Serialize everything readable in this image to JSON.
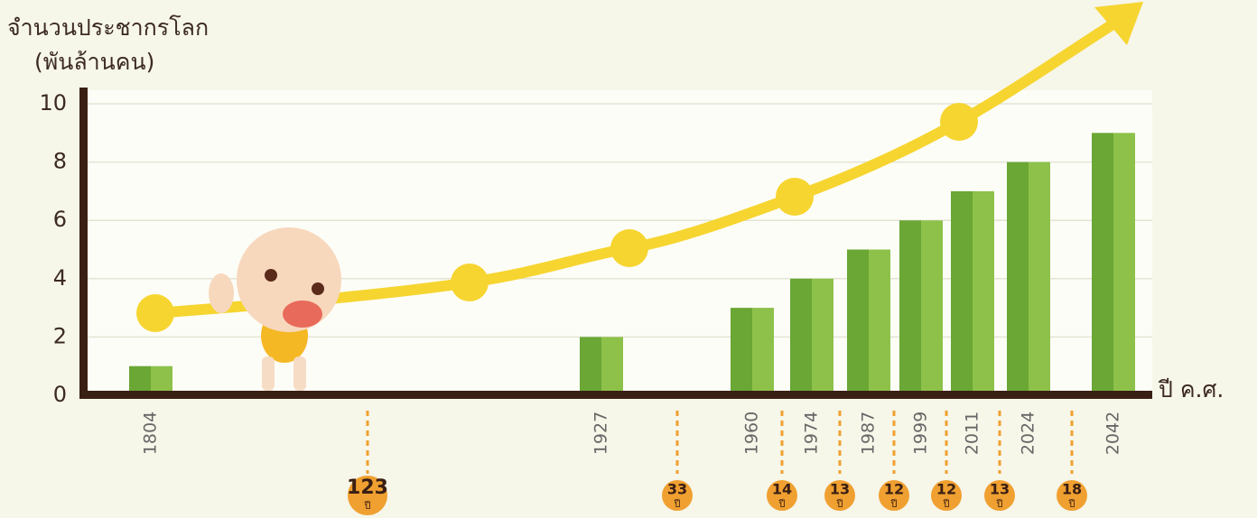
{
  "chart_data": {
    "type": "bar",
    "y_label": "จำนวนประชากรโลก",
    "y_label_unit": "(พันล้านคน)",
    "x_label": "ปี ค.ศ.",
    "categories": [
      "1804",
      "1927",
      "1960",
      "1974",
      "1987",
      "1999",
      "2011",
      "2024",
      "2042"
    ],
    "values": [
      1,
      2,
      3,
      4,
      5,
      6,
      7,
      8,
      9
    ],
    "color": "#8dc14a",
    "ylim": [
      0,
      10
    ],
    "yticks": [
      0,
      2,
      4,
      6,
      8,
      10
    ],
    "grid": true,
    "intervals": [
      123,
      33,
      14,
      13,
      12,
      12,
      13,
      18
    ],
    "interval_unit": "ปี"
  }
}
